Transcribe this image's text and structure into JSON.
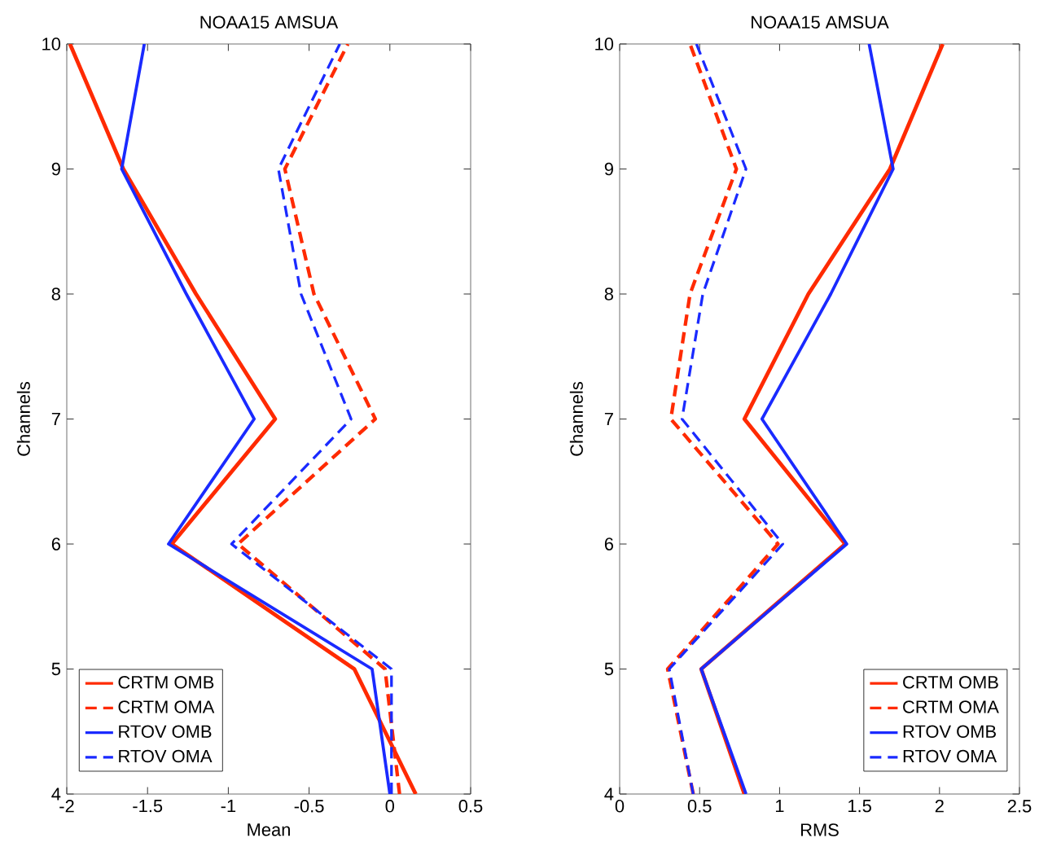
{
  "chart_data": [
    {
      "type": "line",
      "title": "NOAA15 AMSUA",
      "xlabel": "Mean",
      "ylabel": "Channels",
      "xlim": [
        -2,
        0.5
      ],
      "ylim": [
        4,
        10
      ],
      "xticks": [
        -2,
        -1.5,
        -1,
        -0.5,
        0,
        0.5
      ],
      "yticks": [
        4,
        5,
        6,
        7,
        8,
        9,
        10
      ],
      "legend": "bottom left",
      "series": [
        {
          "name": "CRTM OMB",
          "color": "#ff2a00",
          "line_style": "solid",
          "x": [
            0.16,
            -0.22,
            -1.35,
            -0.71,
            -1.2,
            -1.65,
            -1.98
          ],
          "values": [
            4,
            5,
            6,
            7,
            8,
            9,
            10
          ]
        },
        {
          "name": "CRTM OMA",
          "color": "#ff2a00",
          "line_style": "dashed",
          "x": [
            0.06,
            -0.03,
            -0.94,
            -0.09,
            -0.47,
            -0.65,
            -0.26
          ],
          "values": [
            4,
            5,
            6,
            7,
            8,
            9,
            10
          ]
        },
        {
          "name": "RTOV OMB",
          "color": "#1a2aff",
          "line_style": "solid",
          "x": [
            0.0,
            -0.11,
            -1.37,
            -0.84,
            -1.26,
            -1.66,
            -1.52
          ],
          "values": [
            4,
            5,
            6,
            7,
            8,
            9,
            10
          ]
        },
        {
          "name": "RTOV OMA",
          "color": "#1a2aff",
          "line_style": "dashed",
          "x": [
            0.01,
            0.01,
            -0.98,
            -0.24,
            -0.55,
            -0.69,
            -0.31
          ],
          "values": [
            4,
            5,
            6,
            7,
            8,
            9,
            10
          ]
        }
      ]
    },
    {
      "type": "line",
      "title": "NOAA15 AMSUA",
      "xlabel": "RMS",
      "ylabel": "Channels",
      "xlim": [
        0,
        2.5
      ],
      "ylim": [
        4,
        10
      ],
      "xticks": [
        0,
        0.5,
        1,
        1.5,
        2,
        2.5
      ],
      "yticks": [
        4,
        5,
        6,
        7,
        8,
        9,
        10
      ],
      "legend": "bottom right",
      "series": [
        {
          "name": "CRTM OMB",
          "color": "#ff2a00",
          "line_style": "solid",
          "x": [
            0.78,
            0.51,
            1.41,
            0.78,
            1.18,
            1.69,
            2.02
          ],
          "values": [
            4,
            5,
            6,
            7,
            8,
            9,
            10
          ]
        },
        {
          "name": "CRTM OMA",
          "color": "#ff2a00",
          "line_style": "dashed",
          "x": [
            0.46,
            0.3,
            0.99,
            0.32,
            0.44,
            0.73,
            0.44
          ],
          "values": [
            4,
            5,
            6,
            7,
            8,
            9,
            10
          ]
        },
        {
          "name": "RTOV OMB",
          "color": "#1a2aff",
          "line_style": "solid",
          "x": [
            0.79,
            0.51,
            1.42,
            0.89,
            1.32,
            1.71,
            1.56
          ],
          "values": [
            4,
            5,
            6,
            7,
            8,
            9,
            10
          ]
        },
        {
          "name": "RTOV OMA",
          "color": "#1a2aff",
          "line_style": "dashed",
          "x": [
            0.46,
            0.31,
            1.02,
            0.39,
            0.52,
            0.79,
            0.48
          ],
          "values": [
            4,
            5,
            6,
            7,
            8,
            9,
            10
          ]
        }
      ]
    }
  ]
}
